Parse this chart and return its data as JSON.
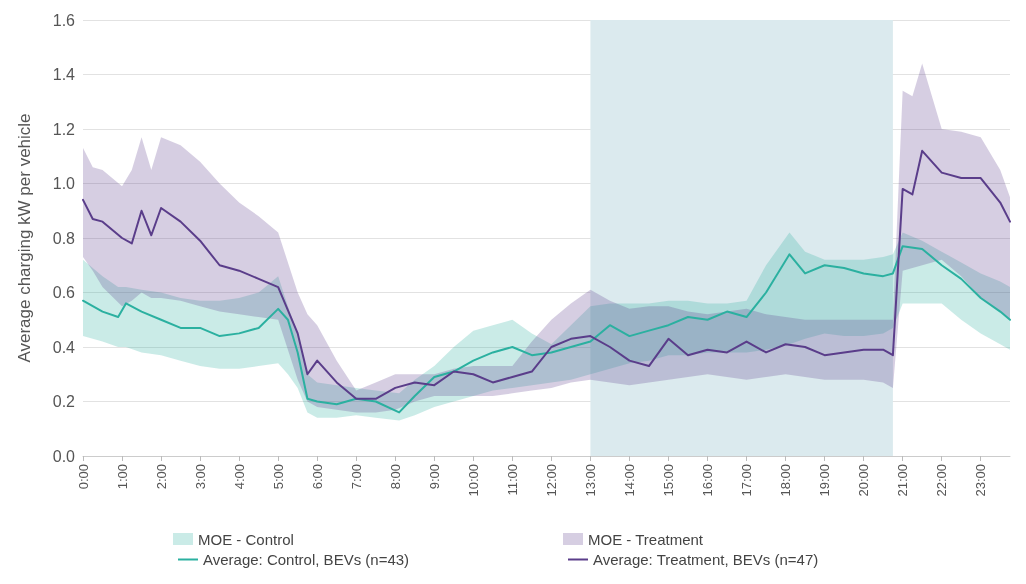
{
  "chart_data": {
    "type": "line",
    "ylabel": "Average charging kW per vehicle",
    "xlim": [
      0,
      23.75
    ],
    "ylim": [
      0,
      1.6
    ],
    "yticks": [
      {
        "value": 0,
        "label": "0.0"
      },
      {
        "value": 0.2,
        "label": "0.2"
      },
      {
        "value": 0.4,
        "label": "0.4"
      },
      {
        "value": 0.6,
        "label": "0.6"
      },
      {
        "value": 0.8,
        "label": "0.8"
      },
      {
        "value": 1,
        "label": "1.0"
      },
      {
        "value": 1.2,
        "label": "1.2"
      },
      {
        "value": 1.4,
        "label": "1.4"
      },
      {
        "value": 1.6,
        "label": "1.6"
      }
    ],
    "xticks": [
      {
        "value": 0,
        "label": "0:00"
      },
      {
        "value": 1,
        "label": "1:00"
      },
      {
        "value": 2,
        "label": "2:00"
      },
      {
        "value": 3,
        "label": "3:00"
      },
      {
        "value": 4,
        "label": "4:00"
      },
      {
        "value": 5,
        "label": "5:00"
      },
      {
        "value": 6,
        "label": "6:00"
      },
      {
        "value": 7,
        "label": "7:00"
      },
      {
        "value": 8,
        "label": "8:00"
      },
      {
        "value": 9,
        "label": "9:00"
      },
      {
        "value": 10,
        "label": "10:00"
      },
      {
        "value": 11,
        "label": "11:00"
      },
      {
        "value": 12,
        "label": "12:00"
      },
      {
        "value": 13,
        "label": "13:00"
      },
      {
        "value": 14,
        "label": "14:00"
      },
      {
        "value": 15,
        "label": "15:00"
      },
      {
        "value": 16,
        "label": "16:00"
      },
      {
        "value": 17,
        "label": "17:00"
      },
      {
        "value": 18,
        "label": "18:00"
      },
      {
        "value": 19,
        "label": "19:00"
      },
      {
        "value": 20,
        "label": "20:00"
      },
      {
        "value": 21,
        "label": "21:00"
      },
      {
        "value": 22,
        "label": "22:00"
      },
      {
        "value": 23,
        "label": "23:00"
      }
    ],
    "grid": "y",
    "legend": "bottom",
    "marker": "none",
    "line_style": "solid",
    "annotations": [
      "MOE - Control",
      "MOE - Treatment"
    ],
    "bands": [
      {
        "axis": "x",
        "from": 13,
        "to": 20.75,
        "color": "#dbeaee"
      }
    ],
    "series": [
      {
        "name": "Average: Control, BEVs (n=43)",
        "color": "#2bb0a0",
        "x": [
          0,
          0.5,
          0.9,
          1.1,
          1.5,
          2,
          2.5,
          3,
          3.5,
          4,
          4.5,
          5,
          5.25,
          5.5,
          5.75,
          6,
          6.5,
          7,
          7.5,
          8.1,
          8.5,
          9,
          9.5,
          10,
          10.5,
          11,
          11.5,
          12,
          12.5,
          13,
          13.5,
          14,
          14.5,
          15,
          15.5,
          16,
          16.5,
          17,
          17.5,
          18.1,
          18.5,
          19,
          19.5,
          20,
          20.5,
          20.75,
          21,
          21.5,
          22,
          22.5,
          23,
          23.5,
          23.75
        ],
        "values": [
          0.57,
          0.53,
          0.51,
          0.56,
          0.53,
          0.5,
          0.47,
          0.47,
          0.44,
          0.45,
          0.47,
          0.54,
          0.5,
          0.38,
          0.21,
          0.2,
          0.19,
          0.21,
          0.2,
          0.16,
          0.22,
          0.29,
          0.31,
          0.35,
          0.38,
          0.4,
          0.37,
          0.38,
          0.4,
          0.42,
          0.48,
          0.44,
          0.46,
          0.48,
          0.51,
          0.5,
          0.53,
          0.51,
          0.6,
          0.74,
          0.67,
          0.7,
          0.69,
          0.67,
          0.66,
          0.67,
          0.77,
          0.76,
          0.7,
          0.65,
          0.58,
          0.53,
          0.5
        ],
        "lower": [
          0.44,
          0.42,
          0.4,
          0.4,
          0.38,
          0.37,
          0.35,
          0.33,
          0.32,
          0.32,
          0.33,
          0.34,
          0.3,
          0.25,
          0.16,
          0.14,
          0.14,
          0.15,
          0.14,
          0.13,
          0.15,
          0.18,
          0.2,
          0.22,
          0.24,
          0.25,
          0.26,
          0.27,
          0.28,
          0.3,
          0.32,
          0.34,
          0.35,
          0.37,
          0.37,
          0.38,
          0.38,
          0.38,
          0.39,
          0.41,
          0.43,
          0.45,
          0.44,
          0.44,
          0.45,
          0.47,
          0.56,
          0.56,
          0.56,
          0.5,
          0.45,
          0.41,
          0.39
        ],
        "upper": [
          0.72,
          0.66,
          0.62,
          0.62,
          0.61,
          0.6,
          0.58,
          0.57,
          0.57,
          0.58,
          0.6,
          0.66,
          0.55,
          0.45,
          0.3,
          0.27,
          0.26,
          0.25,
          0.24,
          0.23,
          0.28,
          0.33,
          0.4,
          0.46,
          0.48,
          0.5,
          0.45,
          0.41,
          0.48,
          0.55,
          0.56,
          0.56,
          0.56,
          0.57,
          0.57,
          0.56,
          0.56,
          0.57,
          0.7,
          0.82,
          0.75,
          0.72,
          0.72,
          0.72,
          0.73,
          0.74,
          0.82,
          0.79,
          0.75,
          0.71,
          0.67,
          0.64,
          0.62
        ]
      },
      {
        "name": "Average: Treatment, BEVs (n=47)",
        "color": "#5a3d8a",
        "x": [
          0,
          0.25,
          0.5,
          1,
          1.25,
          1.5,
          1.75,
          2,
          2.5,
          3,
          3.5,
          4,
          4.5,
          5,
          5.5,
          5.75,
          6,
          6.5,
          7,
          7.5,
          8,
          8.5,
          9,
          9.5,
          10,
          10.5,
          11,
          11.5,
          12,
          12.5,
          13,
          13.5,
          14,
          14.5,
          15,
          15.5,
          16,
          16.5,
          17,
          17.5,
          18,
          18.5,
          19,
          19.5,
          20,
          20.5,
          20.75,
          21,
          21.25,
          21.5,
          22,
          22.5,
          23,
          23.5,
          23.75
        ],
        "values": [
          0.94,
          0.87,
          0.86,
          0.8,
          0.78,
          0.9,
          0.81,
          0.91,
          0.86,
          0.79,
          0.7,
          0.68,
          0.65,
          0.62,
          0.45,
          0.3,
          0.35,
          0.27,
          0.21,
          0.21,
          0.25,
          0.27,
          0.26,
          0.31,
          0.3,
          0.27,
          0.29,
          0.31,
          0.4,
          0.43,
          0.44,
          0.4,
          0.35,
          0.33,
          0.43,
          0.37,
          0.39,
          0.38,
          0.42,
          0.38,
          0.41,
          0.4,
          0.37,
          0.38,
          0.39,
          0.39,
          0.37,
          0.98,
          0.96,
          1.12,
          1.04,
          1.02,
          1.02,
          0.93,
          0.86
        ],
        "lower": [
          0.73,
          0.68,
          0.62,
          0.55,
          0.57,
          0.6,
          0.58,
          0.58,
          0.57,
          0.55,
          0.53,
          0.52,
          0.51,
          0.5,
          0.28,
          0.2,
          0.18,
          0.17,
          0.16,
          0.16,
          0.17,
          0.2,
          0.22,
          0.22,
          0.22,
          0.22,
          0.23,
          0.24,
          0.25,
          0.27,
          0.28,
          0.27,
          0.26,
          0.27,
          0.28,
          0.29,
          0.3,
          0.29,
          0.28,
          0.29,
          0.3,
          0.29,
          0.28,
          0.28,
          0.28,
          0.27,
          0.25,
          0.68,
          0.69,
          0.7,
          0.72,
          0.66,
          0.58,
          0.53,
          0.5
        ],
        "upper": [
          1.13,
          1.06,
          1.05,
          0.99,
          1.05,
          1.17,
          1.05,
          1.17,
          1.14,
          1.08,
          1.0,
          0.93,
          0.88,
          0.82,
          0.6,
          0.52,
          0.48,
          0.35,
          0.24,
          0.27,
          0.3,
          0.3,
          0.3,
          0.32,
          0.33,
          0.33,
          0.33,
          0.42,
          0.5,
          0.56,
          0.61,
          0.57,
          0.54,
          0.55,
          0.55,
          0.53,
          0.52,
          0.53,
          0.54,
          0.52,
          0.51,
          0.5,
          0.5,
          0.5,
          0.5,
          0.5,
          0.5,
          1.34,
          1.32,
          1.44,
          1.2,
          1.19,
          1.17,
          1.05,
          0.95
        ]
      }
    ]
  }
}
